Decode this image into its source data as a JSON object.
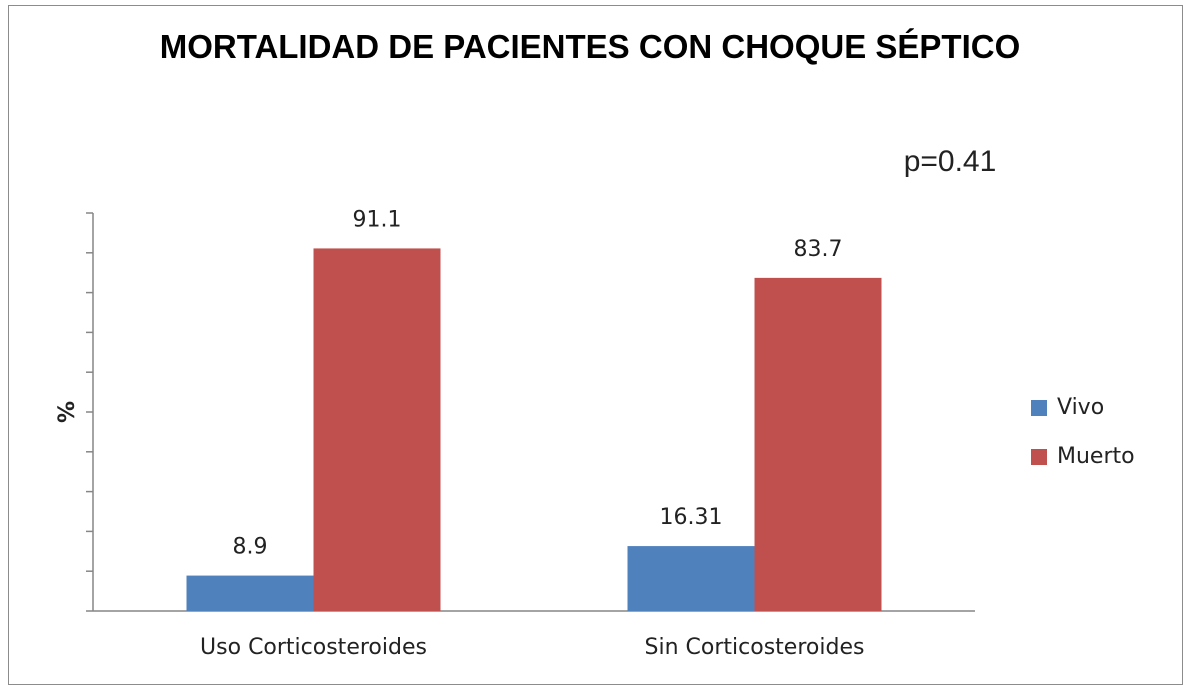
{
  "chart_data": {
    "type": "bar",
    "title": "MORTALIDAD DE PACIENTES CON CHOQUE SÉPTICO",
    "annotation": "p=0.41",
    "y_label": "%",
    "categories": [
      "Uso Corticosteroides",
      "Sin Corticosteroides"
    ],
    "series": [
      {
        "name": "Vivo",
        "color": "#4f81bd",
        "values": [
          8.9,
          16.31
        ]
      },
      {
        "name": "Muerto",
        "color": "#c0504d",
        "values": [
          91.1,
          83.7
        ]
      }
    ],
    "ylim": [
      0,
      100
    ],
    "yticks": [
      0,
      10,
      20,
      30,
      40,
      50,
      60,
      70,
      80,
      90,
      100
    ],
    "legend": "right"
  }
}
